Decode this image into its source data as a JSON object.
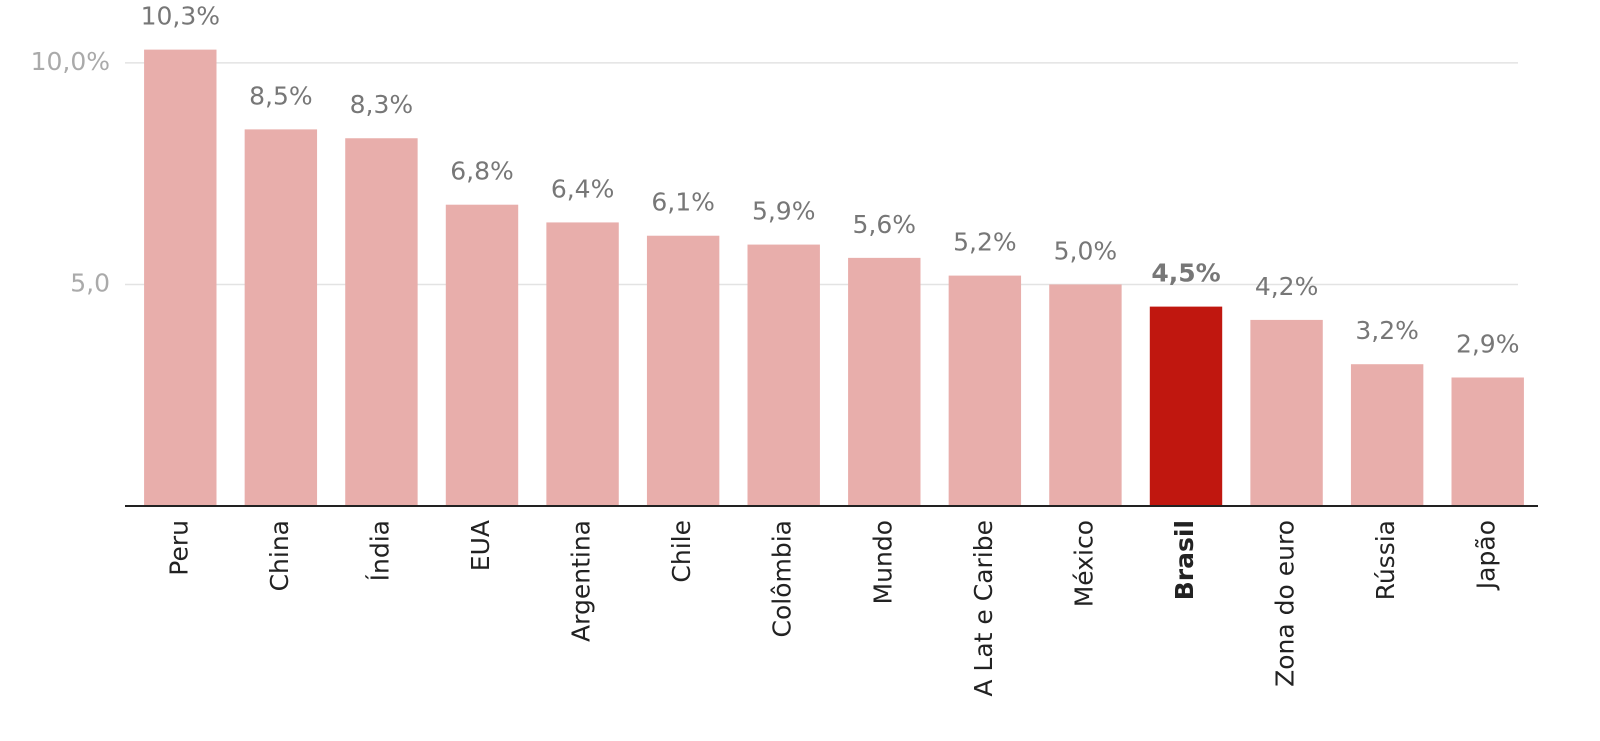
{
  "chart_data": {
    "type": "bar",
    "categories": [
      "Peru",
      "China",
      "Índia",
      "EUA",
      "Argentina",
      "Chile",
      "Colômbia",
      "Mundo",
      "A Lat e Caribe",
      "México",
      "Brasil",
      "Zona do euro",
      "Rússia",
      "Japão"
    ],
    "values": [
      10.3,
      8.5,
      8.3,
      6.8,
      6.4,
      6.1,
      5.9,
      5.6,
      5.2,
      5.0,
      4.5,
      4.2,
      3.2,
      2.9
    ],
    "value_labels": [
      "10,3%",
      "8,5%",
      "8,3%",
      "6,8%",
      "6,4%",
      "6,1%",
      "5,9%",
      "5,6%",
      "5,2%",
      "5,0%",
      "4,5%",
      "4,2%",
      "3,2%",
      "2,9%"
    ],
    "colors": [
      "#e8aeab",
      "#e8aeab",
      "#e8aeab",
      "#e8aeab",
      "#e8aeab",
      "#e8aeab",
      "#e8aeab",
      "#e8aeab",
      "#e8aeab",
      "#e8aeab",
      "#c0170f",
      "#e8aeab",
      "#e8aeab",
      "#e8aeab"
    ],
    "ylim": [
      0,
      11.42
    ],
    "yticks": [
      {
        "value": 5,
        "label": "5,0"
      },
      {
        "value": 10,
        "label": "10,0%"
      }
    ],
    "grid": true
  }
}
